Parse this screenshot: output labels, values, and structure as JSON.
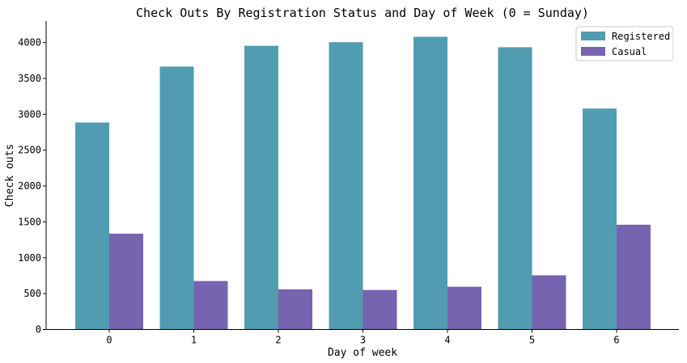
{
  "chart_data": {
    "type": "bar",
    "title": "Check Outs By Registration Status and Day of Week (0 = Sunday)",
    "xlabel": "Day of week",
    "ylabel": "Check outs",
    "categories": [
      "0",
      "1",
      "2",
      "3",
      "4",
      "5",
      "6"
    ],
    "series": [
      {
        "name": "Registered",
        "color": "#529cb2",
        "values": [
          2885,
          3665,
          3955,
          4005,
          4080,
          3935,
          3080
        ]
      },
      {
        "name": "Casual",
        "color": "#7764b0",
        "values": [
          1335,
          675,
          560,
          550,
          595,
          755,
          1460
        ]
      }
    ],
    "ylim": [
      0,
      4300
    ],
    "yticks": [
      "0",
      "500",
      "1000",
      "1500",
      "2000",
      "2500",
      "3000",
      "3500",
      "4000"
    ],
    "grid": false,
    "legend": "top-right"
  }
}
